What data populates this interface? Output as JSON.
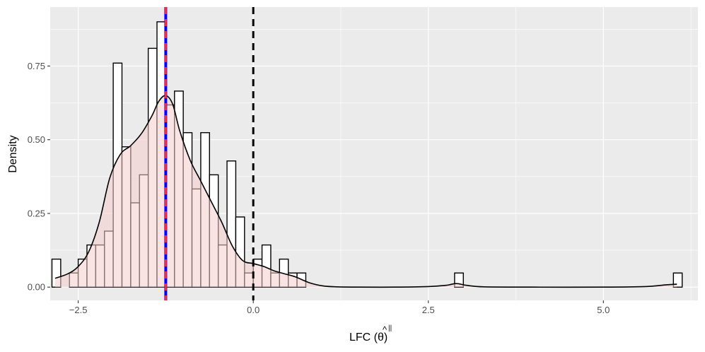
{
  "chart_data": {
    "type": "histogram",
    "xlabel": "LFC (",
    "xlabel_symbol": "θ",
    "xlabel_hat": "^",
    "xlabel_superscript": "||",
    "xlabel_close": ")",
    "ylabel": "Density",
    "xlim": [
      -2.9,
      6.35
    ],
    "ylim": [
      -0.045,
      0.95
    ],
    "x_ticks": [
      -2.5,
      0.0,
      2.5,
      5.0
    ],
    "x_tick_labels": [
      "−2.5",
      "0.0",
      "2.5",
      "5.0"
    ],
    "y_ticks": [
      0.0,
      0.25,
      0.5,
      0.75
    ],
    "y_tick_labels": [
      "0.00",
      "0.25",
      "0.50",
      "0.75"
    ],
    "grid": true,
    "histogram": {
      "bin_width": 0.125,
      "bins": [
        {
          "x0": -2.875,
          "density": 0.095
        },
        {
          "x0": -2.75,
          "density": 0.0
        },
        {
          "x0": -2.625,
          "density": 0.048
        },
        {
          "x0": -2.5,
          "density": 0.095
        },
        {
          "x0": -2.375,
          "density": 0.143
        },
        {
          "x0": -2.25,
          "density": 0.143
        },
        {
          "x0": -2.125,
          "density": 0.19
        },
        {
          "x0": -2.0,
          "density": 0.76
        },
        {
          "x0": -1.875,
          "density": 0.476
        },
        {
          "x0": -1.75,
          "density": 0.286
        },
        {
          "x0": -1.625,
          "density": 0.381
        },
        {
          "x0": -1.5,
          "density": 0.81
        },
        {
          "x0": -1.375,
          "density": 0.9
        },
        {
          "x0": -1.25,
          "density": 0.618
        },
        {
          "x0": -1.125,
          "density": 0.665
        },
        {
          "x0": -1.0,
          "density": 0.524
        },
        {
          "x0": -0.875,
          "density": 0.333
        },
        {
          "x0": -0.75,
          "density": 0.524
        },
        {
          "x0": -0.625,
          "density": 0.381
        },
        {
          "x0": -0.5,
          "density": 0.143
        },
        {
          "x0": -0.375,
          "density": 0.428
        },
        {
          "x0": -0.25,
          "density": 0.238
        },
        {
          "x0": -0.125,
          "density": 0.048
        },
        {
          "x0": 0.0,
          "density": 0.095
        },
        {
          "x0": 0.125,
          "density": 0.143
        },
        {
          "x0": 0.25,
          "density": 0.048
        },
        {
          "x0": 0.375,
          "density": 0.095
        },
        {
          "x0": 0.5,
          "density": 0.048
        },
        {
          "x0": 0.625,
          "density": 0.048
        },
        {
          "x0": 2.875,
          "density": 0.048
        },
        {
          "x0": 6.0,
          "density": 0.048
        }
      ]
    },
    "density_curve": {
      "x": [
        -2.83,
        -2.65,
        -2.5,
        -2.35,
        -2.2,
        -2.05,
        -1.9,
        -1.75,
        -1.6,
        -1.45,
        -1.35,
        -1.25,
        -1.15,
        -1.05,
        -0.9,
        -0.75,
        -0.6,
        -0.45,
        -0.3,
        -0.15,
        0.0,
        0.15,
        0.3,
        0.45,
        0.6,
        0.8,
        1.0,
        1.2,
        1.5,
        2.0,
        2.5,
        2.75,
        2.9,
        3.05,
        3.3,
        4.0,
        5.0,
        5.6,
        5.9,
        6.05
      ],
      "y": [
        0.03,
        0.045,
        0.07,
        0.12,
        0.22,
        0.37,
        0.45,
        0.48,
        0.52,
        0.58,
        0.63,
        0.65,
        0.62,
        0.53,
        0.43,
        0.36,
        0.29,
        0.22,
        0.14,
        0.09,
        0.08,
        0.07,
        0.055,
        0.045,
        0.035,
        0.015,
        0.004,
        0.001,
        0.0,
        0.0,
        0.002,
        0.006,
        0.012,
        0.006,
        0.001,
        0.0,
        0.0,
        0.002,
        0.008,
        0.01
      ]
    },
    "vertical_lines": [
      {
        "x": -1.25,
        "color": "#0000ff",
        "style": "solid"
      },
      {
        "x": -1.25,
        "color": "#ff2a2a",
        "style": "dashed"
      },
      {
        "x": 0.0,
        "color": "#000000",
        "style": "dashed"
      }
    ],
    "colors": {
      "panel": "#ebebeb",
      "grid_major": "#ffffff",
      "density_fill": "#f4cccc",
      "bar_fill": "#ffffff",
      "bar_stroke": "#000000"
    }
  }
}
